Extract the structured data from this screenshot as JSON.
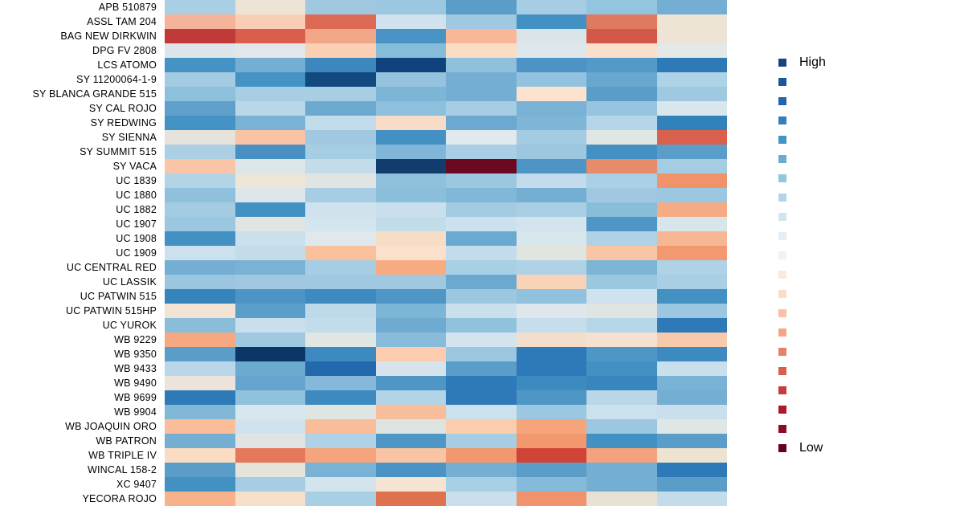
{
  "chart_data": {
    "type": "heatmap",
    "description": "Diverging blue-to-red heatmap of wheat varieties (rows) across 8 unlabeled columns; blue = High, red = Low",
    "n_columns": 8,
    "rows": [
      "APB 510879",
      "ASSL TAM 204",
      "BAG NEW DIRKWIN",
      "DPG FV 2808",
      "LCS ATOMO",
      "SY 11200064-1-9",
      "SY BLANCA GRANDE 515",
      "SY CAL ROJO",
      "SY REDWING",
      "SY SIENNA",
      "SY SUMMIT 515",
      "SY VACA",
      "UC 1839",
      "UC 1880",
      "UC 1882",
      "UC 1907",
      "UC 1908",
      "UC 1909",
      "UC CENTRAL RED",
      "UC LASSIK",
      "UC PATWIN 515",
      "UC PATWIN 515HP",
      "UC YUROK",
      "WB 9229",
      "WB 9350",
      "WB 9433",
      "WB 9490",
      "WB 9699",
      "WB 9904",
      "WB JOAQUIN ORO",
      "WB PATRON",
      "WB TRIPLE IV",
      "WINCAL 158-2",
      "XC 9407",
      "YECORA ROJO"
    ],
    "cell_colors": [
      [
        "#a9cfe4",
        "#ede4d6",
        "#a0c9e1",
        "#9cc7e0",
        "#5b9dc9",
        "#a6cde3",
        "#92c5de",
        "#74afd3"
      ],
      [
        "#f5b49a",
        "#f9cdb6",
        "#dd6a55",
        "#cfe2ee",
        "#9fc9e1",
        "#4390c2",
        "#e07a5e",
        "#ede4d5"
      ],
      [
        "#c03a38",
        "#d95f4c",
        "#f2a688",
        "#4893c3",
        "#f8b898",
        "#dbe5e9",
        "#d4584a",
        "#ede4d5"
      ],
      [
        "#dde5ea",
        "#e2e7ea",
        "#fbcfb4",
        "#85bcda",
        "#f9ddc5",
        "#dde7ec",
        "#f8e0cd",
        "#e3e8e9"
      ],
      [
        "#4593c4",
        "#74aed2",
        "#3c87bd",
        "#10427e",
        "#8fc1dd",
        "#4b94c5",
        "#549ac8",
        "#2e7ab8"
      ],
      [
        "#a3cbe2",
        "#4593c4",
        "#124a80",
        "#95c3dd",
        "#74afd3",
        "#92c2de",
        "#68a7cf",
        "#aed3e6"
      ],
      [
        "#8cc0dc",
        "#a8cee4",
        "#a8cee4",
        "#7db5d6",
        "#74afd3",
        "#fbe3cf",
        "#5b9dc9",
        "#9fc9e1"
      ],
      [
        "#5ea0ca",
        "#b9d7e8",
        "#6ca9cf",
        "#8cc0dc",
        "#a6cde3",
        "#79b2d4",
        "#97c5df",
        "#d9e6ed"
      ],
      [
        "#4593c4",
        "#79b2d4",
        "#c3dcec",
        "#f8dcc7",
        "#6ca9d0",
        "#7fb6d7",
        "#b5d5e8",
        "#3181ba"
      ],
      [
        "#e5e3dc",
        "#f9c4a4",
        "#a0c9e1",
        "#4390c2",
        "#dfe9ee",
        "#a3cbe2",
        "#e0e6e3",
        "#d9604c"
      ],
      [
        "#abd0e5",
        "#4890c1",
        "#a5cde3",
        "#80b7d8",
        "#a9cfe4",
        "#9cc7e0",
        "#4390c2",
        "#5b9dc9"
      ],
      [
        "#fac5a7",
        "#dde6e8",
        "#c3dcea",
        "#123c6d",
        "#6b0920",
        "#4e94c5",
        "#e88b69",
        "#a4cce2"
      ],
      [
        "#b3d3e7",
        "#ece5d8",
        "#e0e5e4",
        "#8fc0dc",
        "#9cc7e0",
        "#c3dcec",
        "#aad0e5",
        "#f0926a"
      ],
      [
        "#8fc0dc",
        "#dde6ea",
        "#a6cde3",
        "#8bbeda",
        "#81b7d7",
        "#74afd3",
        "#a0c9e1",
        "#9cc7e0"
      ],
      [
        "#a3cbe2",
        "#4390c2",
        "#cfe2ee",
        "#c9dfec",
        "#a3cbe2",
        "#a9cfe4",
        "#8abdda",
        "#f6ab84"
      ],
      [
        "#9cc7e0",
        "#e0e5e1",
        "#d3e5ef",
        "#c2dcea",
        "#cce1ee",
        "#d3e4ee",
        "#4e96c6",
        "#d8e6ec"
      ],
      [
        "#4390c2",
        "#c9e0ed",
        "#dfe8ec",
        "#f7ddc6",
        "#6ca9d0",
        "#d8e7ec",
        "#b0d2e6",
        "#f8b793"
      ],
      [
        "#cce1ee",
        "#c4dbe9",
        "#f9c09c",
        "#fbe0cb",
        "#c3dcec",
        "#e1e5e0",
        "#f9c5a5",
        "#f39972"
      ],
      [
        "#74afd3",
        "#79b2d4",
        "#a6cde3",
        "#f7ab81",
        "#a9cfe4",
        "#b0d2e6",
        "#7db5d6",
        "#b0d2e6"
      ],
      [
        "#9ac6df",
        "#a0c9e1",
        "#a0c9e1",
        "#a0c9e1",
        "#6ca9d0",
        "#f9d3b8",
        "#9cc7e0",
        "#a9cfe4"
      ],
      [
        "#3585bc",
        "#4c95c6",
        "#3d8ac0",
        "#4e96c6",
        "#9cc7e0",
        "#90c1dd",
        "#cfe2ee",
        "#4390c2"
      ],
      [
        "#f2e4d4",
        "#5c9eca",
        "#bdd9ea",
        "#7db5d6",
        "#c9dfec",
        "#dde7ec",
        "#dee5e2",
        "#9cc7e0"
      ],
      [
        "#8abdda",
        "#c9dfec",
        "#c3dcec",
        "#6fabd1",
        "#90c1dd",
        "#c6deec",
        "#b7d6e8",
        "#2e7ab8"
      ],
      [
        "#f6a981",
        "#a0c9e1",
        "#dfe6e4",
        "#87bbd9",
        "#d3e4ee",
        "#f3ddcb",
        "#f5e1d0",
        "#f9c9ab"
      ],
      [
        "#5b9dc9",
        "#0b3666",
        "#3d8ac0",
        "#fbcdae",
        "#9cc7e0",
        "#2e7ab8",
        "#4e96c6",
        "#3d8ac0"
      ],
      [
        "#b9d7e9",
        "#6caad0",
        "#2268ac",
        "#d8e4ec",
        "#5b9dc9",
        "#2e7ab8",
        "#4390c2",
        "#c9dfec"
      ],
      [
        "#ece4da",
        "#65a5cd",
        "#84b9d9",
        "#4e96c6",
        "#2e7ab8",
        "#3d8ac0",
        "#3886bd",
        "#79b2d4"
      ],
      [
        "#2e7ab8",
        "#90c1dd",
        "#3d8ac0",
        "#b3d3e7",
        "#2e7ab8",
        "#4e96c6",
        "#b9d7e9",
        "#74afd3"
      ],
      [
        "#81b7d7",
        "#d8e6ee",
        "#dee5e2",
        "#f8bd9a",
        "#cce1ee",
        "#9cc7e0",
        "#cce1ee",
        "#c9dfec"
      ],
      [
        "#f9bd9a",
        "#cfe3ef",
        "#f9bd9a",
        "#dde4e0",
        "#fbcdae",
        "#f5a47c",
        "#9cc7e0",
        "#dfe6e6"
      ],
      [
        "#74afd3",
        "#e0e5e3",
        "#b0d2e6",
        "#4e96c6",
        "#a6cde3",
        "#f2976e",
        "#4390c2",
        "#5b9dc9"
      ],
      [
        "#fadcc3",
        "#e5775a",
        "#f5a47c",
        "#f9c4a4",
        "#f2976e",
        "#cf4436",
        "#f4a27e",
        "#ede3d1"
      ],
      [
        "#5b9dc9",
        "#e5e3da",
        "#79b2d4",
        "#4a93c4",
        "#74afd3",
        "#5b9dc9",
        "#74afd3",
        "#2e7ab8"
      ],
      [
        "#4390c2",
        "#a6cde3",
        "#d3e4ee",
        "#f5e3d3",
        "#a9cfe4",
        "#85badb",
        "#74afd3",
        "#5b9dc9"
      ],
      [
        "#f7b28c",
        "#f7dfc9",
        "#a9cfe4",
        "#e0714f",
        "#c9dfec",
        "#f0936c",
        "#e8e2d5",
        "#c3dcec"
      ]
    ],
    "legend": {
      "high_label": "High",
      "low_label": "Low",
      "colors": [
        "#16457c",
        "#1b5899",
        "#2166ac",
        "#3480b9",
        "#4393c3",
        "#6bacd1",
        "#92c5de",
        "#b2d5e7",
        "#d1e5f0",
        "#e4eef4",
        "#f2f1ee",
        "#fae9df",
        "#fddbc7",
        "#f9c0a5",
        "#f4a582",
        "#e58368",
        "#d6604d",
        "#c43c3c",
        "#b2182b",
        "#8d0c25",
        "#67001f"
      ],
      "position": "right"
    },
    "grid": false,
    "title": "",
    "xlabel": "",
    "ylabel": ""
  }
}
